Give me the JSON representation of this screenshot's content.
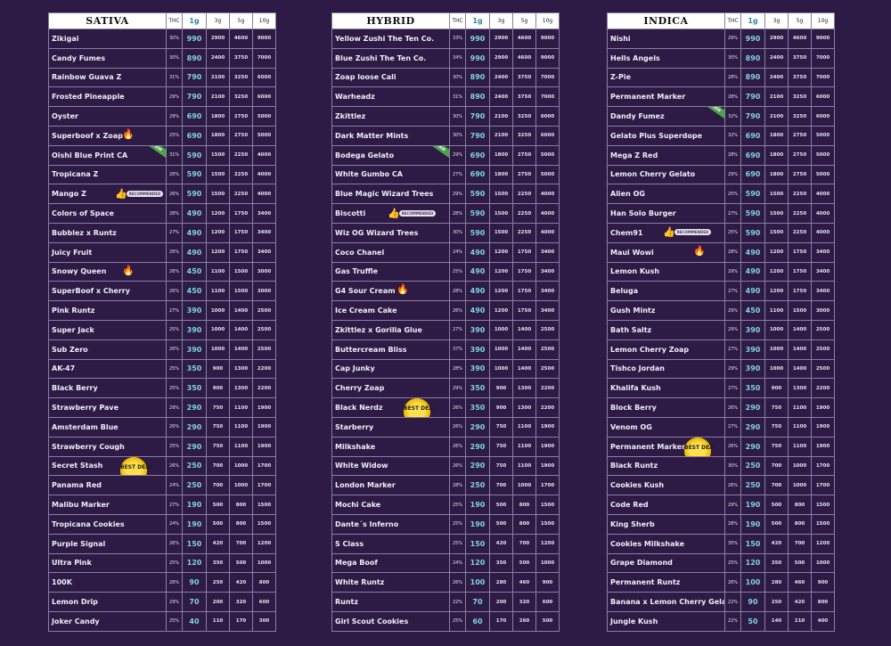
{
  "headers": {
    "thc": "THC",
    "g1": "1g",
    "g3": "3g",
    "g5": "5g",
    "g10": "10g"
  },
  "badges": {
    "recommended": "RECOMMENDED",
    "best_deal": "BEST DEAL",
    "new": "NEW"
  },
  "accent_colors": {
    "background": "#2d1a45",
    "price_1g": "#7fd4e0",
    "border": "#8a7fa3"
  },
  "menus": [
    {
      "title": "SATIVA",
      "rows": [
        {
          "name": "Zikigai",
          "thc": "30%",
          "g1": "990",
          "g3": "2900",
          "g5": "4600",
          "g10": "9000"
        },
        {
          "name": "Candy Fumes",
          "thc": "30%",
          "g1": "890",
          "g3": "2400",
          "g5": "3750",
          "g10": "7000"
        },
        {
          "name": "Rainbow Guava Z",
          "thc": "31%",
          "g1": "790",
          "g3": "2100",
          "g5": "3250",
          "g10": "6000"
        },
        {
          "name": "Frosted Pineapple",
          "thc": "29%",
          "g1": "790",
          "g3": "2100",
          "g5": "3250",
          "g10": "6000"
        },
        {
          "name": "Oyster",
          "thc": "29%",
          "g1": "690",
          "g3": "1800",
          "g5": "2750",
          "g10": "5000"
        },
        {
          "name": "Superboof x Zoap",
          "thc": "25%",
          "g1": "690",
          "g3": "1800",
          "g5": "2750",
          "g10": "5000",
          "fire": true
        },
        {
          "name": "Oishi  Blue Print CA",
          "thc": "31%",
          "g1": "590",
          "g3": "1500",
          "g5": "2250",
          "g10": "4000",
          "new": true
        },
        {
          "name": "Tropicana Z",
          "thc": "26%",
          "g1": "590",
          "g3": "1500",
          "g5": "2250",
          "g10": "4000"
        },
        {
          "name": "Mango Z",
          "thc": "26%",
          "g1": "590",
          "g3": "1500",
          "g5": "2250",
          "g10": "4000",
          "rec": true
        },
        {
          "name": "Colors of Space",
          "thc": "28%",
          "g1": "490",
          "g3": "1200",
          "g5": "1750",
          "g10": "3400"
        },
        {
          "name": "Bubblez x Runtz",
          "thc": "27%",
          "g1": "490",
          "g3": "1200",
          "g5": "1750",
          "g10": "3400"
        },
        {
          "name": "Juicy Fruit",
          "thc": "26%",
          "g1": "490",
          "g3": "1200",
          "g5": "1750",
          "g10": "3400"
        },
        {
          "name": "Snowy Queen",
          "thc": "26%",
          "g1": "450",
          "g3": "1100",
          "g5": "1500",
          "g10": "3000",
          "fire": true
        },
        {
          "name": "SuperBoof x Cherry",
          "thc": "26%",
          "g1": "450",
          "g3": "1100",
          "g5": "1500",
          "g10": "3000"
        },
        {
          "name": "Pink Runtz",
          "thc": "27%",
          "g1": "390",
          "g3": "1000",
          "g5": "1400",
          "g10": "2500"
        },
        {
          "name": "Super Jack",
          "thc": "25%",
          "g1": "390",
          "g3": "1000",
          "g5": "1400",
          "g10": "2500"
        },
        {
          "name": "Sub Zero",
          "thc": "26%",
          "g1": "390",
          "g3": "1000",
          "g5": "1400",
          "g10": "2500"
        },
        {
          "name": "AK-47",
          "thc": "25%",
          "g1": "350",
          "g3": "900",
          "g5": "1300",
          "g10": "2200"
        },
        {
          "name": "Black Berry",
          "thc": "25%",
          "g1": "350",
          "g3": "900",
          "g5": "1300",
          "g10": "2200"
        },
        {
          "name": "Strawberry Pave",
          "thc": "29%",
          "g1": "290",
          "g3": "750",
          "g5": "1100",
          "g10": "1900"
        },
        {
          "name": "Amsterdam Blue",
          "thc": "26%",
          "g1": "290",
          "g3": "750",
          "g5": "1100",
          "g10": "1900"
        },
        {
          "name": "Strawberry Cough",
          "thc": "25%",
          "g1": "290",
          "g3": "750",
          "g5": "1100",
          "g10": "1900"
        },
        {
          "name": "Secret Stash",
          "thc": "26%",
          "g1": "250",
          "g3": "700",
          "g5": "1000",
          "g10": "1700",
          "deal": true
        },
        {
          "name": "Panama Red",
          "thc": "24%",
          "g1": "250",
          "g3": "700",
          "g5": "1000",
          "g10": "1700"
        },
        {
          "name": "Malibu Marker",
          "thc": "27%",
          "g1": "190",
          "g3": "500",
          "g5": "800",
          "g10": "1500"
        },
        {
          "name": "Tropicana Cookies",
          "thc": "24%",
          "g1": "190",
          "g3": "500",
          "g5": "800",
          "g10": "1500"
        },
        {
          "name": "Purple Signal",
          "thc": "26%",
          "g1": "150",
          "g3": "420",
          "g5": "700",
          "g10": "1200"
        },
        {
          "name": "Ultra Pink",
          "thc": "25%",
          "g1": "120",
          "g3": "350",
          "g5": "500",
          "g10": "1000"
        },
        {
          "name": "100K",
          "thc": "26%",
          "g1": "90",
          "g3": "250",
          "g5": "420",
          "g10": "800"
        },
        {
          "name": "Lemon Drip",
          "thc": "29%",
          "g1": "70",
          "g3": "200",
          "g5": "320",
          "g10": "600"
        },
        {
          "name": "Joker Candy",
          "thc": "25%",
          "g1": "40",
          "g3": "110",
          "g5": "170",
          "g10": "300"
        }
      ]
    },
    {
      "title": "HYBRID",
      "rows": [
        {
          "name": "Yellow Zushi The Ten Co.",
          "thc": "33%",
          "g1": "990",
          "g3": "2900",
          "g5": "4600",
          "g10": "9000"
        },
        {
          "name": "Blue Zushi The Ten Co.",
          "thc": "34%",
          "g1": "990",
          "g3": "2900",
          "g5": "4600",
          "g10": "9000"
        },
        {
          "name": "Zoap loose Cali",
          "thc": "30%",
          "g1": "890",
          "g3": "2400",
          "g5": "3750",
          "g10": "7000"
        },
        {
          "name": "Warheadz",
          "thc": "31%",
          "g1": "890",
          "g3": "2400",
          "g5": "3750",
          "g10": "7000"
        },
        {
          "name": "Zkittlez",
          "thc": "30%",
          "g1": "790",
          "g3": "2100",
          "g5": "3250",
          "g10": "6000"
        },
        {
          "name": "Dark Matter Mints",
          "thc": "30%",
          "g1": "790",
          "g3": "2100",
          "g5": "3250",
          "g10": "6000"
        },
        {
          "name": "Bodega Gelato",
          "thc": "29%",
          "g1": "690",
          "g3": "1800",
          "g5": "2750",
          "g10": "5000",
          "new": true
        },
        {
          "name": "White Gumbo CA",
          "thc": "27%",
          "g1": "690",
          "g3": "1800",
          "g5": "2750",
          "g10": "5000"
        },
        {
          "name": "Blue Magic Wizard Trees",
          "thc": "29%",
          "g1": "590",
          "g3": "1500",
          "g5": "2250",
          "g10": "4000"
        },
        {
          "name": "Biscotti",
          "thc": "28%",
          "g1": "590",
          "g3": "1500",
          "g5": "2250",
          "g10": "4000",
          "rec": true
        },
        {
          "name": "Wiz OG Wizard Trees",
          "thc": "30%",
          "g1": "590",
          "g3": "1500",
          "g5": "2250",
          "g10": "4000"
        },
        {
          "name": "Coco Chanel",
          "thc": "24%",
          "g1": "490",
          "g3": "1200",
          "g5": "1750",
          "g10": "3400"
        },
        {
          "name": "Gas Truffle",
          "thc": "25%",
          "g1": "490",
          "g3": "1200",
          "g5": "1750",
          "g10": "3400"
        },
        {
          "name": "G4 Sour Cream",
          "thc": "28%",
          "g1": "490",
          "g3": "1200",
          "g5": "1750",
          "g10": "3400",
          "fire": true
        },
        {
          "name": "Ice Cream Cake",
          "thc": "26%",
          "g1": "490",
          "g3": "1200",
          "g5": "1750",
          "g10": "3400"
        },
        {
          "name": "Zkittlez x Gorilla Glue",
          "thc": "27%",
          "g1": "390",
          "g3": "1000",
          "g5": "1400",
          "g10": "2500"
        },
        {
          "name": "Buttercream Bliss",
          "thc": "37%",
          "g1": "390",
          "g3": "1000",
          "g5": "1400",
          "g10": "2500"
        },
        {
          "name": "Cap Junky",
          "thc": "28%",
          "g1": "390",
          "g3": "1000",
          "g5": "1400",
          "g10": "2500"
        },
        {
          "name": "Cherry Zoap",
          "thc": "29%",
          "g1": "350",
          "g3": "900",
          "g5": "1300",
          "g10": "2200"
        },
        {
          "name": "Black Nerdz",
          "thc": "26%",
          "g1": "350",
          "g3": "900",
          "g5": "1300",
          "g10": "2200",
          "deal": true
        },
        {
          "name": "Starberry",
          "thc": "26%",
          "g1": "290",
          "g3": "750",
          "g5": "1100",
          "g10": "1900"
        },
        {
          "name": "Milkshake",
          "thc": "26%",
          "g1": "290",
          "g3": "750",
          "g5": "1100",
          "g10": "1900"
        },
        {
          "name": "White Widow",
          "thc": "26%",
          "g1": "290",
          "g3": "750",
          "g5": "1100",
          "g10": "1900"
        },
        {
          "name": "London Marker",
          "thc": "28%",
          "g1": "250",
          "g3": "700",
          "g5": "1000",
          "g10": "1700"
        },
        {
          "name": "Mochi Cake",
          "thc": "25%",
          "g1": "190",
          "g3": "500",
          "g5": "800",
          "g10": "1500"
        },
        {
          "name": "Dante´s Inferno",
          "thc": "25%",
          "g1": "190",
          "g3": "500",
          "g5": "800",
          "g10": "1500"
        },
        {
          "name": "S Class",
          "thc": "25%",
          "g1": "150",
          "g3": "420",
          "g5": "700",
          "g10": "1200"
        },
        {
          "name": "Mega Boof",
          "thc": "24%",
          "g1": "120",
          "g3": "350",
          "g5": "500",
          "g10": "1000"
        },
        {
          "name": "White Runtz",
          "thc": "26%",
          "g1": "100",
          "g3": "280",
          "g5": "460",
          "g10": "900"
        },
        {
          "name": "Runtz",
          "thc": "22%",
          "g1": "70",
          "g3": "200",
          "g5": "320",
          "g10": "600"
        },
        {
          "name": "Girl Scout Cookies",
          "thc": "25%",
          "g1": "60",
          "g3": "170",
          "g5": "260",
          "g10": "500"
        }
      ]
    },
    {
      "title": "INDICA",
      "rows": [
        {
          "name": "Nishi",
          "thc": "29%",
          "g1": "990",
          "g3": "2900",
          "g5": "4600",
          "g10": "9000"
        },
        {
          "name": "Hells Angels",
          "thc": "30%",
          "g1": "890",
          "g3": "2400",
          "g5": "3750",
          "g10": "7000"
        },
        {
          "name": "Z-Pie",
          "thc": "28%",
          "g1": "890",
          "g3": "2400",
          "g5": "3750",
          "g10": "7000"
        },
        {
          "name": "Permanent Marker",
          "thc": "28%",
          "g1": "790",
          "g3": "2100",
          "g5": "3250",
          "g10": "6000"
        },
        {
          "name": "Dandy Fumez",
          "thc": "32%",
          "g1": "790",
          "g3": "2100",
          "g5": "3250",
          "g10": "6000",
          "new": true
        },
        {
          "name": "Gelato Plus Superdope",
          "thc": "32%",
          "g1": "690",
          "g3": "1800",
          "g5": "2750",
          "g10": "5000"
        },
        {
          "name": "Mega Z Red",
          "thc": "28%",
          "g1": "690",
          "g3": "1800",
          "g5": "2750",
          "g10": "5000"
        },
        {
          "name": "Lemon Cherry Gelato",
          "thc": "29%",
          "g1": "690",
          "g3": "1800",
          "g5": "2750",
          "g10": "5000"
        },
        {
          "name": "Alien OG",
          "thc": "25%",
          "g1": "590",
          "g3": "1500",
          "g5": "2250",
          "g10": "4000"
        },
        {
          "name": "Han Solo Burger",
          "thc": "27%",
          "g1": "590",
          "g3": "1500",
          "g5": "2250",
          "g10": "4000"
        },
        {
          "name": "Chem91",
          "thc": "25%",
          "g1": "590",
          "g3": "1500",
          "g5": "2250",
          "g10": "4000",
          "rec": true
        },
        {
          "name": "Maui Wowi",
          "thc": "28%",
          "g1": "490",
          "g3": "1200",
          "g5": "1750",
          "g10": "3400",
          "fire": true
        },
        {
          "name": "Lemon Kush",
          "thc": "29%",
          "g1": "490",
          "g3": "1200",
          "g5": "1750",
          "g10": "3400"
        },
        {
          "name": "Beluga",
          "thc": "27%",
          "g1": "490",
          "g3": "1200",
          "g5": "1750",
          "g10": "3400"
        },
        {
          "name": "Gush Mintz",
          "thc": "29%",
          "g1": "450",
          "g3": "1100",
          "g5": "1500",
          "g10": "3000"
        },
        {
          "name": "Bath Saltz",
          "thc": "29%",
          "g1": "390",
          "g3": "1000",
          "g5": "1400",
          "g10": "2500"
        },
        {
          "name": "Lemon Cherry Zoap",
          "thc": "27%",
          "g1": "390",
          "g3": "1000",
          "g5": "1400",
          "g10": "2500"
        },
        {
          "name": "Tishco Jordan",
          "thc": "29%",
          "g1": "390",
          "g3": "1000",
          "g5": "1400",
          "g10": "2500"
        },
        {
          "name": "Khalifa Kush",
          "thc": "27%",
          "g1": "350",
          "g3": "900",
          "g5": "1300",
          "g10": "2200"
        },
        {
          "name": "Block Berry",
          "thc": "26%",
          "g1": "290",
          "g3": "750",
          "g5": "1100",
          "g10": "1900"
        },
        {
          "name": "Venom OG",
          "thc": "27%",
          "g1": "290",
          "g3": "750",
          "g5": "1100",
          "g10": "1900"
        },
        {
          "name": "Permanent Marker",
          "thc": "26%",
          "g1": "290",
          "g3": "750",
          "g5": "1100",
          "g10": "1900",
          "deal": true
        },
        {
          "name": "Black Runtz",
          "thc": "30%",
          "g1": "250",
          "g3": "700",
          "g5": "1000",
          "g10": "1700"
        },
        {
          "name": "Cookies Kush",
          "thc": "26%",
          "g1": "250",
          "g3": "700",
          "g5": "1000",
          "g10": "1700"
        },
        {
          "name": "Code Red",
          "thc": "29%",
          "g1": "190",
          "g3": "500",
          "g5": "800",
          "g10": "1500"
        },
        {
          "name": "King Sherb",
          "thc": "28%",
          "g1": "190",
          "g3": "500",
          "g5": "800",
          "g10": "1500"
        },
        {
          "name": "Cookies Milkshake",
          "thc": "35%",
          "g1": "150",
          "g3": "420",
          "g5": "700",
          "g10": "1200"
        },
        {
          "name": "Grape Diamond",
          "thc": "25%",
          "g1": "120",
          "g3": "350",
          "g5": "500",
          "g10": "1000"
        },
        {
          "name": "Permanent Runtz",
          "thc": "26%",
          "g1": "100",
          "g3": "280",
          "g5": "460",
          "g10": "900"
        },
        {
          "name": "Banana x Lemon Cherry Gelato",
          "thc": "22%",
          "g1": "90",
          "g3": "250",
          "g5": "420",
          "g10": "800"
        },
        {
          "name": "Jungle Kush",
          "thc": "22%",
          "g1": "50",
          "g3": "140",
          "g5": "210",
          "g10": "400"
        }
      ]
    }
  ]
}
